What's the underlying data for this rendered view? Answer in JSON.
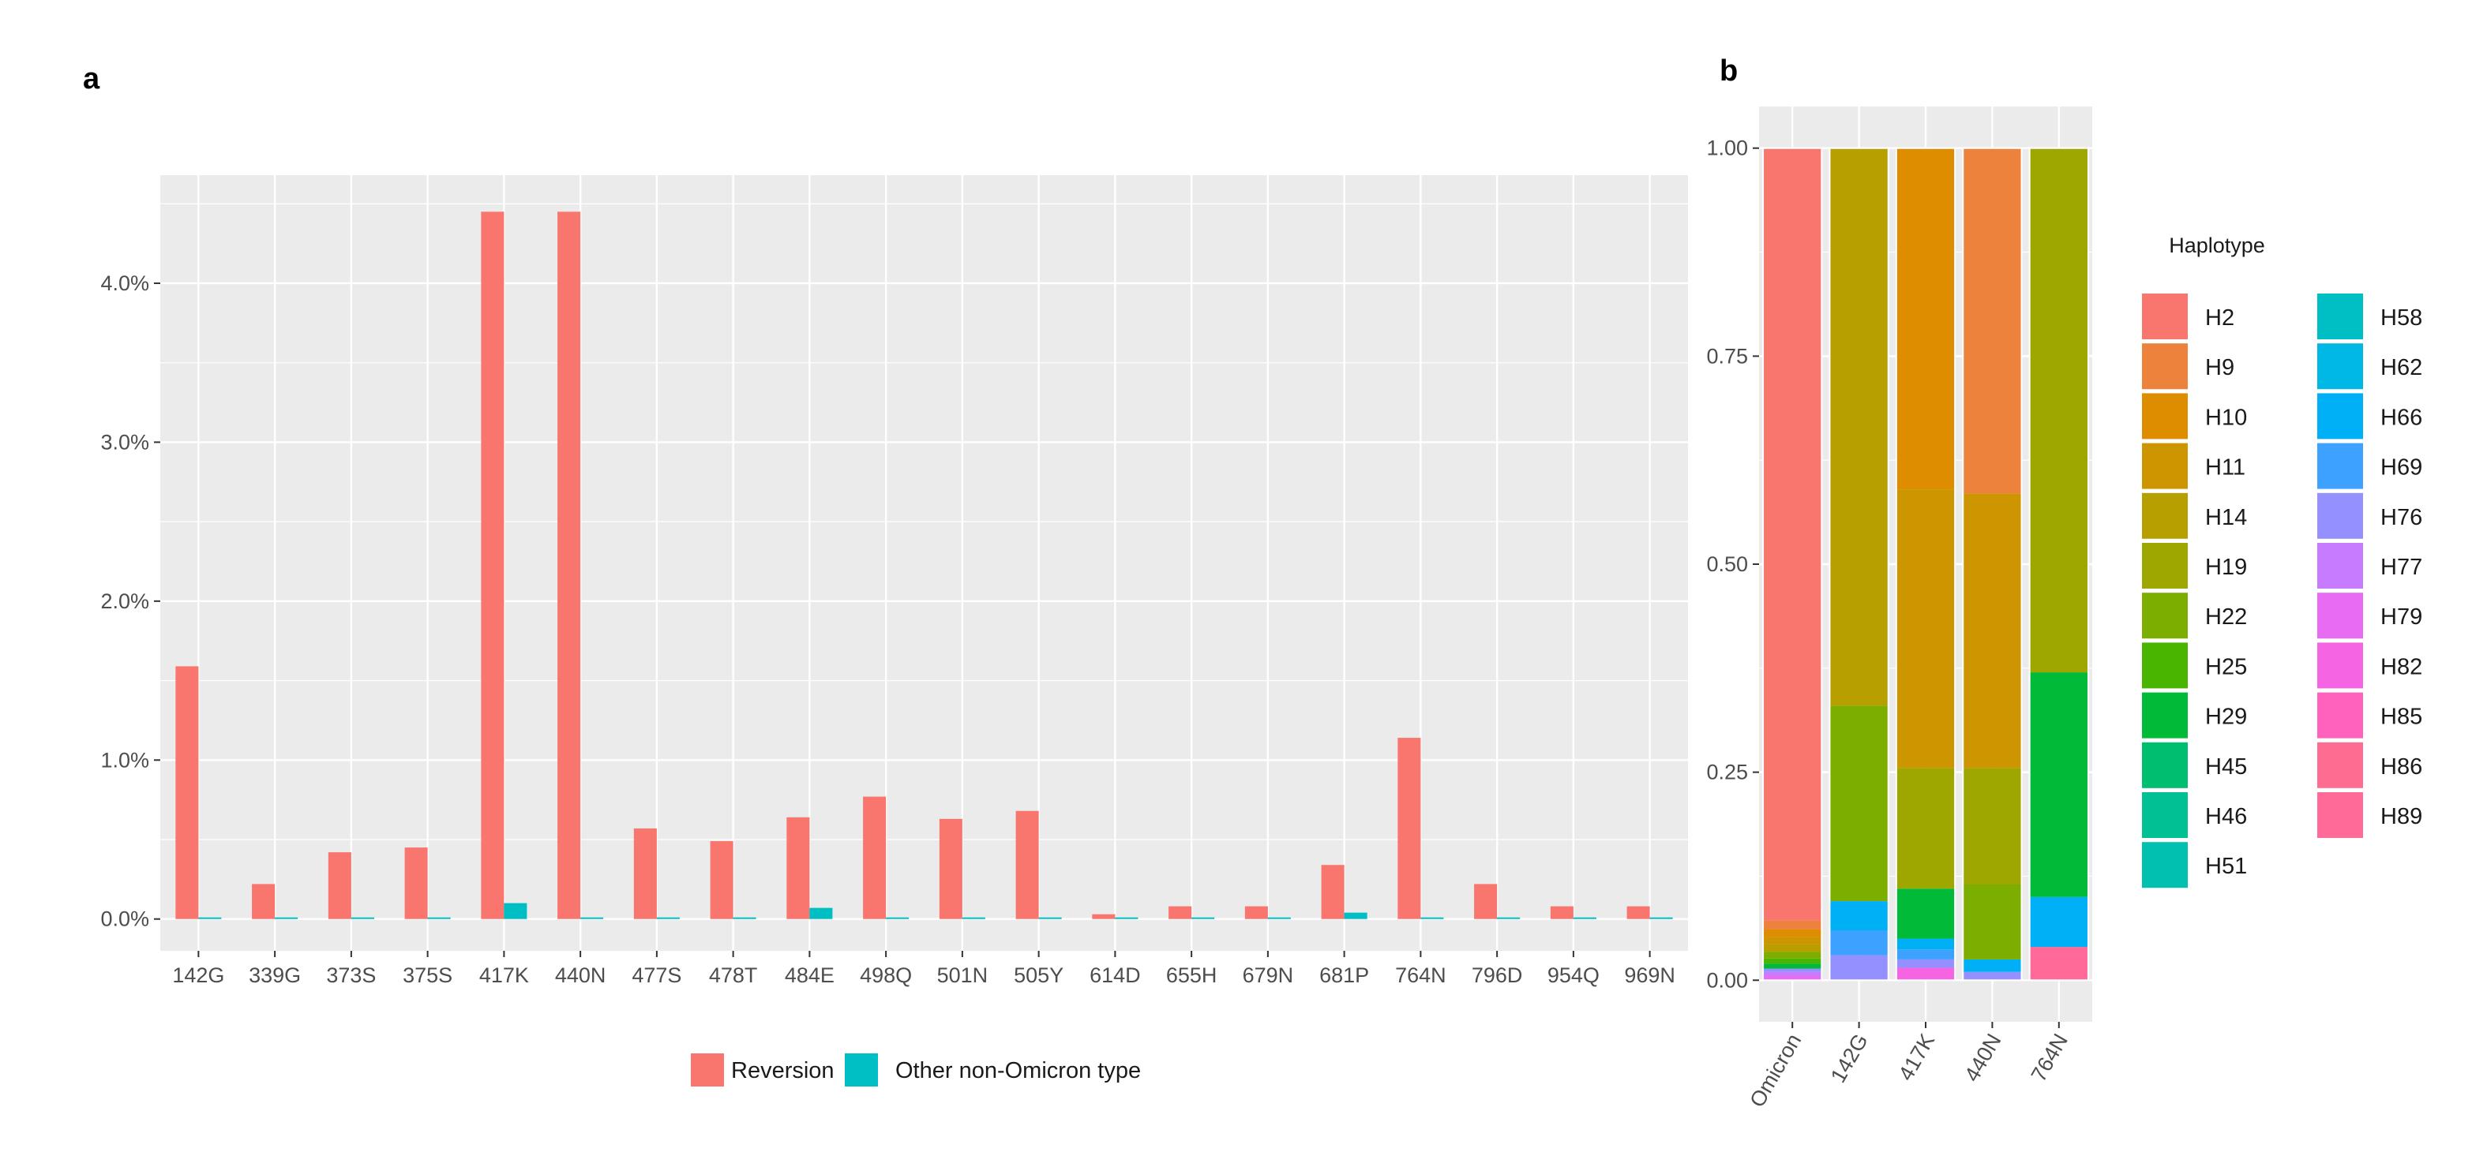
{
  "chart_data": [
    {
      "panel": "a",
      "type": "bar",
      "title": "",
      "xlabel": "",
      "ylabel": "",
      "categories": [
        "142G",
        "339G",
        "373S",
        "375S",
        "417K",
        "440N",
        "477S",
        "478T",
        "484E",
        "498Q",
        "501N",
        "505Y",
        "614D",
        "655H",
        "679N",
        "681P",
        "764N",
        "796D",
        "954Q",
        "969N"
      ],
      "series": [
        {
          "name": "Reversion",
          "color": "#F8766D",
          "values": [
            1.59,
            0.22,
            0.42,
            0.45,
            4.45,
            4.45,
            0.57,
            0.49,
            0.64,
            0.77,
            0.63,
            0.68,
            0.03,
            0.08,
            0.08,
            0.34,
            1.14,
            0.22,
            0.08,
            0.08
          ]
        },
        {
          "name": "Other non-Omicron type",
          "color": "#00BFC4",
          "values": [
            0.01,
            0.01,
            0.01,
            0.01,
            0.1,
            0.01,
            0.01,
            0.01,
            0.07,
            0.01,
            0.01,
            0.01,
            0.01,
            0.01,
            0.01,
            0.04,
            0.01,
            0.01,
            0.01,
            0.01
          ]
        }
      ],
      "yticks": [
        0,
        1,
        2,
        3,
        4
      ],
      "ytick_labels": [
        "0.0%",
        "1.0%",
        "2.0%",
        "3.0%",
        "4.0%"
      ],
      "ylim": [
        -0.2,
        4.68
      ],
      "legend": "bottom"
    },
    {
      "panel": "b",
      "type": "bar",
      "stacked": true,
      "title": "",
      "categories": [
        "Omicron",
        "142G",
        "417K",
        "440N",
        "764N"
      ],
      "yticks": [
        0,
        0.25,
        0.5,
        0.75,
        1
      ],
      "ytick_labels": [
        "0.00",
        "0.25",
        "0.50",
        "0.75",
        "1.00"
      ],
      "ylim": [
        -0.05,
        1.05
      ],
      "legend": "right",
      "legend_title": "Haplotype",
      "stacks": [
        [
          {
            "h": "H79",
            "v": 0.005
          },
          {
            "h": "H77",
            "v": 0.005
          },
          {
            "h": "H76",
            "v": 0.004
          },
          {
            "h": "H29",
            "v": 0.006
          },
          {
            "h": "H25",
            "v": 0.006
          },
          {
            "h": "H22",
            "v": 0.008
          },
          {
            "h": "H14",
            "v": 0.009
          },
          {
            "h": "H11",
            "v": 0.009
          },
          {
            "h": "H10",
            "v": 0.009
          },
          {
            "h": "H9",
            "v": 0.011
          },
          {
            "h": "H2",
            "v": 0.928
          }
        ],
        [
          {
            "h": "H76",
            "v": 0.03
          },
          {
            "h": "H69",
            "v": 0.03
          },
          {
            "h": "H66",
            "v": 0.035
          },
          {
            "h": "H22",
            "v": 0.235
          },
          {
            "h": "H14",
            "v": 0.67
          }
        ],
        [
          {
            "h": "H82",
            "v": 0.015
          },
          {
            "h": "H76",
            "v": 0.01
          },
          {
            "h": "H69",
            "v": 0.012
          },
          {
            "h": "H66",
            "v": 0.013
          },
          {
            "h": "H29",
            "v": 0.06
          },
          {
            "h": "H19",
            "v": 0.145
          },
          {
            "h": "H11",
            "v": 0.335
          },
          {
            "h": "H10",
            "v": 0.41
          }
        ],
        [
          {
            "h": "H76",
            "v": 0.01
          },
          {
            "h": "H66",
            "v": 0.015
          },
          {
            "h": "H22",
            "v": 0.09
          },
          {
            "h": "H19",
            "v": 0.14
          },
          {
            "h": "H11",
            "v": 0.33
          },
          {
            "h": "H9",
            "v": 0.415
          }
        ],
        [
          {
            "h": "H89",
            "v": 0.04
          },
          {
            "h": "H66",
            "v": 0.06
          },
          {
            "h": "H29",
            "v": 0.27
          },
          {
            "h": "H19",
            "v": 0.63
          }
        ]
      ],
      "legend_items": [
        {
          "name": "H2",
          "color": "#F8766D"
        },
        {
          "name": "H9",
          "color": "#EC823C"
        },
        {
          "name": "H10",
          "color": "#DE8C00"
        },
        {
          "name": "H11",
          "color": "#CD9600"
        },
        {
          "name": "H14",
          "color": "#B79F00"
        },
        {
          "name": "H19",
          "color": "#9DA700"
        },
        {
          "name": "H22",
          "color": "#7CAE00"
        },
        {
          "name": "H25",
          "color": "#49B500"
        },
        {
          "name": "H29",
          "color": "#00BA38"
        },
        {
          "name": "H45",
          "color": "#00BE70"
        },
        {
          "name": "H46",
          "color": "#00C094"
        },
        {
          "name": "H51",
          "color": "#00C0B0"
        },
        {
          "name": "H58",
          "color": "#00BFC4"
        },
        {
          "name": "H62",
          "color": "#00B8E5"
        },
        {
          "name": "H66",
          "color": "#00B0F6"
        },
        {
          "name": "H69",
          "color": "#3DA1FF"
        },
        {
          "name": "H76",
          "color": "#9590FF"
        },
        {
          "name": "H77",
          "color": "#C77CFF"
        },
        {
          "name": "H79",
          "color": "#E76BF3"
        },
        {
          "name": "H82",
          "color": "#F564E3"
        },
        {
          "name": "H85",
          "color": "#FF62BC"
        },
        {
          "name": "H86",
          "color": "#FF6C91"
        },
        {
          "name": "H89",
          "color": "#FF6A98"
        }
      ]
    }
  ],
  "colors": {
    "panel_bg": "#EBEBEB",
    "grid": "#FFFFFF"
  }
}
